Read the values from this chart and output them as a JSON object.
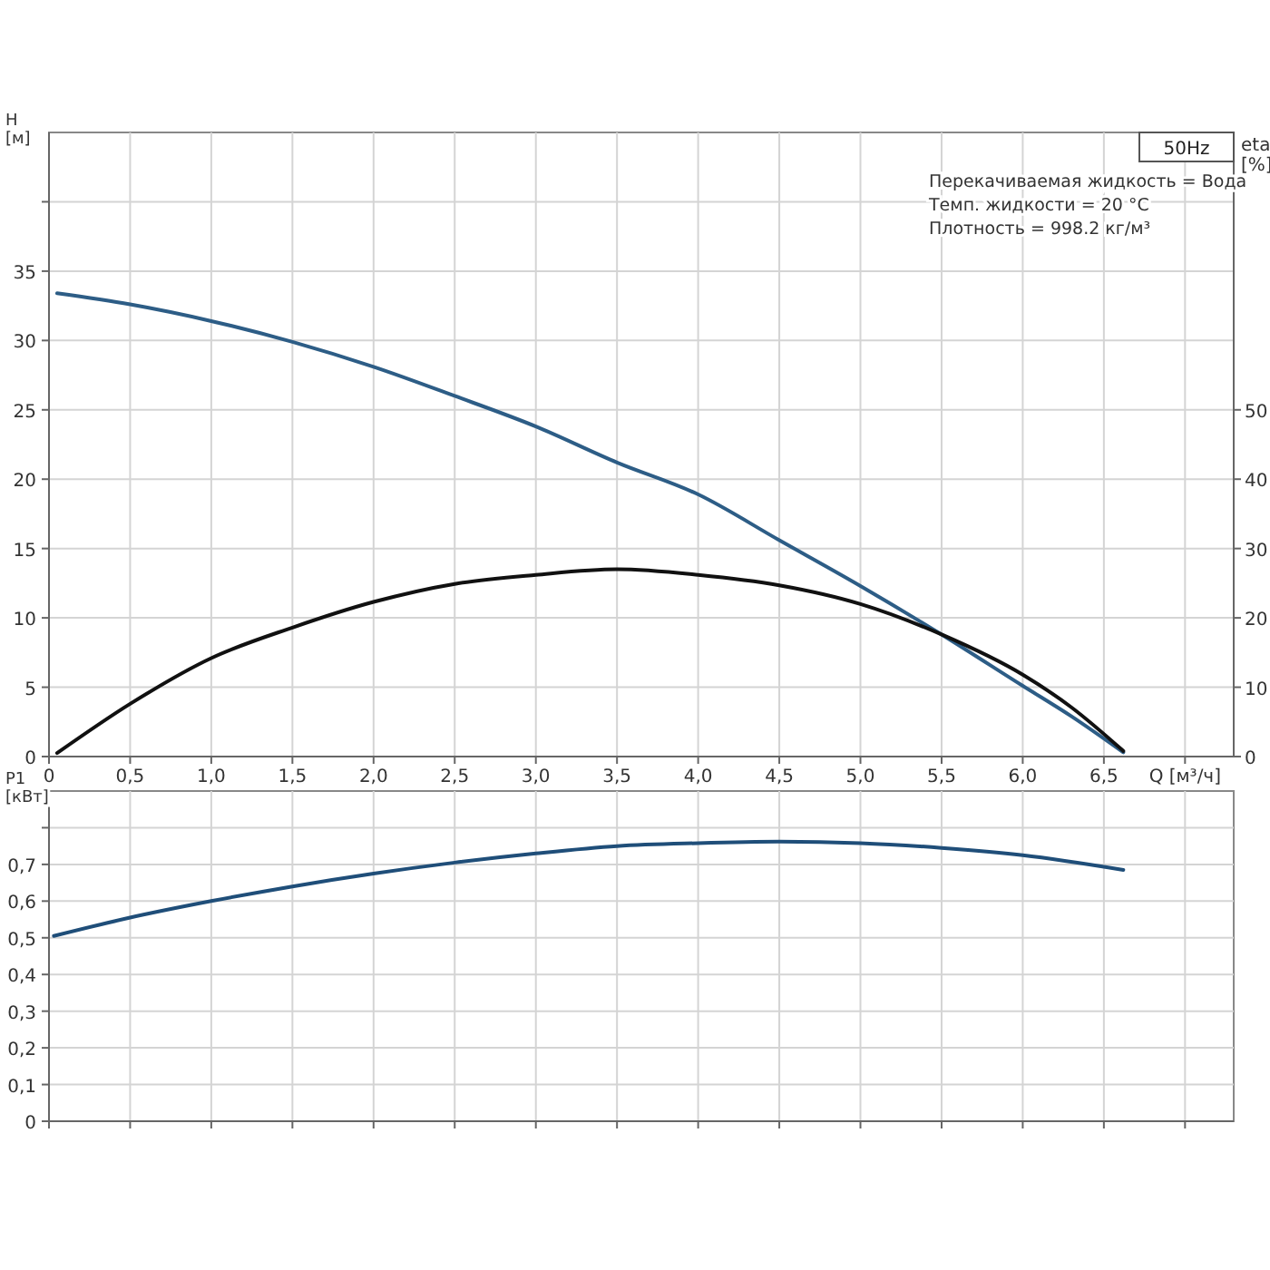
{
  "chart_data": [
    {
      "type": "line",
      "title": "50Hz",
      "ylabel": "H [м]",
      "y2label": "eta [%]",
      "xlabel": "Q [м³/ч]",
      "annotations": [
        "Перекачиваемая жидкость = Вода",
        "Темп. жидкости = 20 °C",
        "Плотность = 998.2 кг/м³"
      ],
      "xlim": [
        0,
        7.3
      ],
      "xticks": [
        {
          "value": 0,
          "label": "0"
        },
        {
          "value": 0.5,
          "label": "0,5"
        },
        {
          "value": 1,
          "label": "1,0"
        },
        {
          "value": 1.5,
          "label": "1,5"
        },
        {
          "value": 2,
          "label": "2,0"
        },
        {
          "value": 2.5,
          "label": "2,5"
        },
        {
          "value": 3,
          "label": "3,0"
        },
        {
          "value": 3.5,
          "label": "3,5"
        },
        {
          "value": 4,
          "label": "4,0"
        },
        {
          "value": 4.5,
          "label": "4,5"
        },
        {
          "value": 5,
          "label": "5,0"
        },
        {
          "value": 5.5,
          "label": "5,5"
        },
        {
          "value": 6,
          "label": "6,0"
        },
        {
          "value": 6.5,
          "label": "6,5"
        },
        {
          "value": 7,
          "label": null
        }
      ],
      "ylim": [
        0,
        45
      ],
      "yticks": [
        0,
        5,
        10,
        15,
        20,
        25,
        30,
        35,
        {
          "value": 40,
          "label": null
        }
      ],
      "y2lim": [
        0,
        90
      ],
      "y2ticks": [
        0,
        10,
        20,
        30,
        40,
        50
      ],
      "grid": true,
      "marker": "none",
      "series": [
        {
          "color": "#2d5d86",
          "x": [
            0.05,
            0.5,
            1,
            1.5,
            2,
            2.5,
            3,
            3.5,
            4,
            4.5,
            5,
            5.5,
            6,
            6.3,
            6.62
          ],
          "values": [
            33.4,
            32.6,
            31.4,
            29.9,
            28.1,
            26,
            23.8,
            21.2,
            18.9,
            15.6,
            12.3,
            8.8,
            5.1,
            2.9,
            0.3
          ]
        },
        {
          "color": "#111111",
          "axis": "y2",
          "x": [
            0.05,
            0.5,
            1,
            1.5,
            2,
            2.5,
            3,
            3.5,
            4,
            4.5,
            5,
            5.5,
            6,
            6.3,
            6.62
          ],
          "values": [
            0.5,
            7.6,
            14.2,
            18.6,
            22.3,
            24.9,
            26.2,
            27,
            26.2,
            24.7,
            22,
            17.6,
            11.8,
            7.1,
            0.8
          ]
        }
      ]
    },
    {
      "type": "line",
      "ylabel": "P1 [кВт]",
      "xlim": [
        0,
        7.3
      ],
      "xticks": [
        0,
        0.5,
        1,
        1.5,
        2,
        2.5,
        3,
        3.5,
        4,
        4.5,
        5,
        5.5,
        6,
        6.5,
        7
      ],
      "ylim": [
        0,
        0.9
      ],
      "yticks": [
        {
          "value": 0,
          "label": "0"
        },
        {
          "value": 0.1,
          "label": "0,1"
        },
        {
          "value": 0.2,
          "label": "0,2"
        },
        {
          "value": 0.3,
          "label": "0,3"
        },
        {
          "value": 0.4,
          "label": "0,4"
        },
        {
          "value": 0.5,
          "label": "0,5"
        },
        {
          "value": 0.6,
          "label": "0,6"
        },
        {
          "value": 0.7,
          "label": "0,7"
        },
        {
          "value": 0.8,
          "label": null
        }
      ],
      "tick_labels": "y",
      "grid": true,
      "marker": "none",
      "series": [
        {
          "color": "#1f4e79",
          "x": [
            0.03,
            0.5,
            1,
            1.5,
            2,
            2.5,
            3,
            3.5,
            4,
            4.5,
            5,
            5.5,
            6,
            6.62
          ],
          "values": [
            0.505,
            0.555,
            0.6,
            0.64,
            0.675,
            0.705,
            0.73,
            0.75,
            0.758,
            0.762,
            0.758,
            0.745,
            0.725,
            0.685
          ]
        }
      ]
    }
  ]
}
